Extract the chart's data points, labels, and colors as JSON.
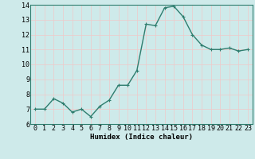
{
  "x": [
    0,
    1,
    2,
    3,
    4,
    5,
    6,
    7,
    8,
    9,
    10,
    11,
    12,
    13,
    14,
    15,
    16,
    17,
    18,
    19,
    20,
    21,
    22,
    23
  ],
  "y": [
    7.0,
    7.0,
    7.7,
    7.4,
    6.8,
    7.0,
    6.5,
    7.2,
    7.6,
    8.6,
    8.6,
    9.6,
    12.7,
    12.6,
    13.8,
    13.9,
    13.2,
    12.0,
    11.3,
    11.0,
    11.0,
    11.1,
    10.9,
    11.0
  ],
  "line_color": "#2e7d6e",
  "marker": "+",
  "marker_size": 3,
  "marker_color": "#2e7d6e",
  "bg_color": "#ceeaea",
  "grid_color": "#f0c8c8",
  "xlabel": "Humidex (Indice chaleur)",
  "ylim": [
    6,
    14
  ],
  "xlim": [
    -0.5,
    23.5
  ],
  "yticks": [
    6,
    7,
    8,
    9,
    10,
    11,
    12,
    13,
    14
  ],
  "xticks": [
    0,
    1,
    2,
    3,
    4,
    5,
    6,
    7,
    8,
    9,
    10,
    11,
    12,
    13,
    14,
    15,
    16,
    17,
    18,
    19,
    20,
    21,
    22,
    23
  ],
  "xlabel_fontsize": 6.5,
  "tick_fontsize": 6,
  "line_width": 1.0,
  "spine_color": "#2e7d6e"
}
